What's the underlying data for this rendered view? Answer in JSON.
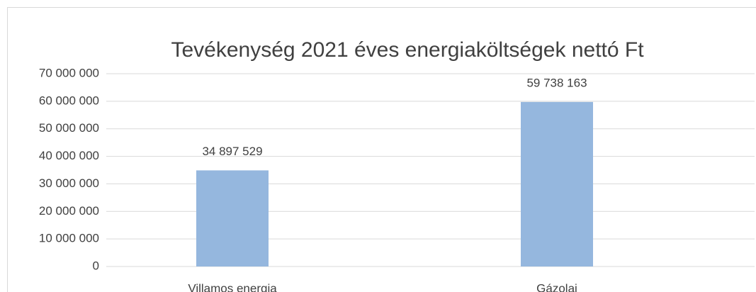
{
  "chart_data": {
    "type": "bar",
    "title": "Tevékenység 2021 éves energiaköltségek nettó Ft",
    "categories": [
      "Villamos energia",
      "Gázolaj"
    ],
    "values": [
      34897529,
      59738163
    ],
    "value_labels": [
      "34 897 529",
      "59 738 163"
    ],
    "color": "#95b7de",
    "ylim": [
      0,
      70000000
    ],
    "yticks": [
      {
        "value": 0,
        "label": "0"
      },
      {
        "value": 10000000,
        "label": "10 000 000"
      },
      {
        "value": 20000000,
        "label": "20 000 000"
      },
      {
        "value": 30000000,
        "label": "30 000 000"
      },
      {
        "value": 40000000,
        "label": "40 000 000"
      },
      {
        "value": 50000000,
        "label": "50 000 000"
      },
      {
        "value": 60000000,
        "label": "60 000 000"
      },
      {
        "value": 70000000,
        "label": "70 000 000"
      }
    ],
    "grid": true
  }
}
